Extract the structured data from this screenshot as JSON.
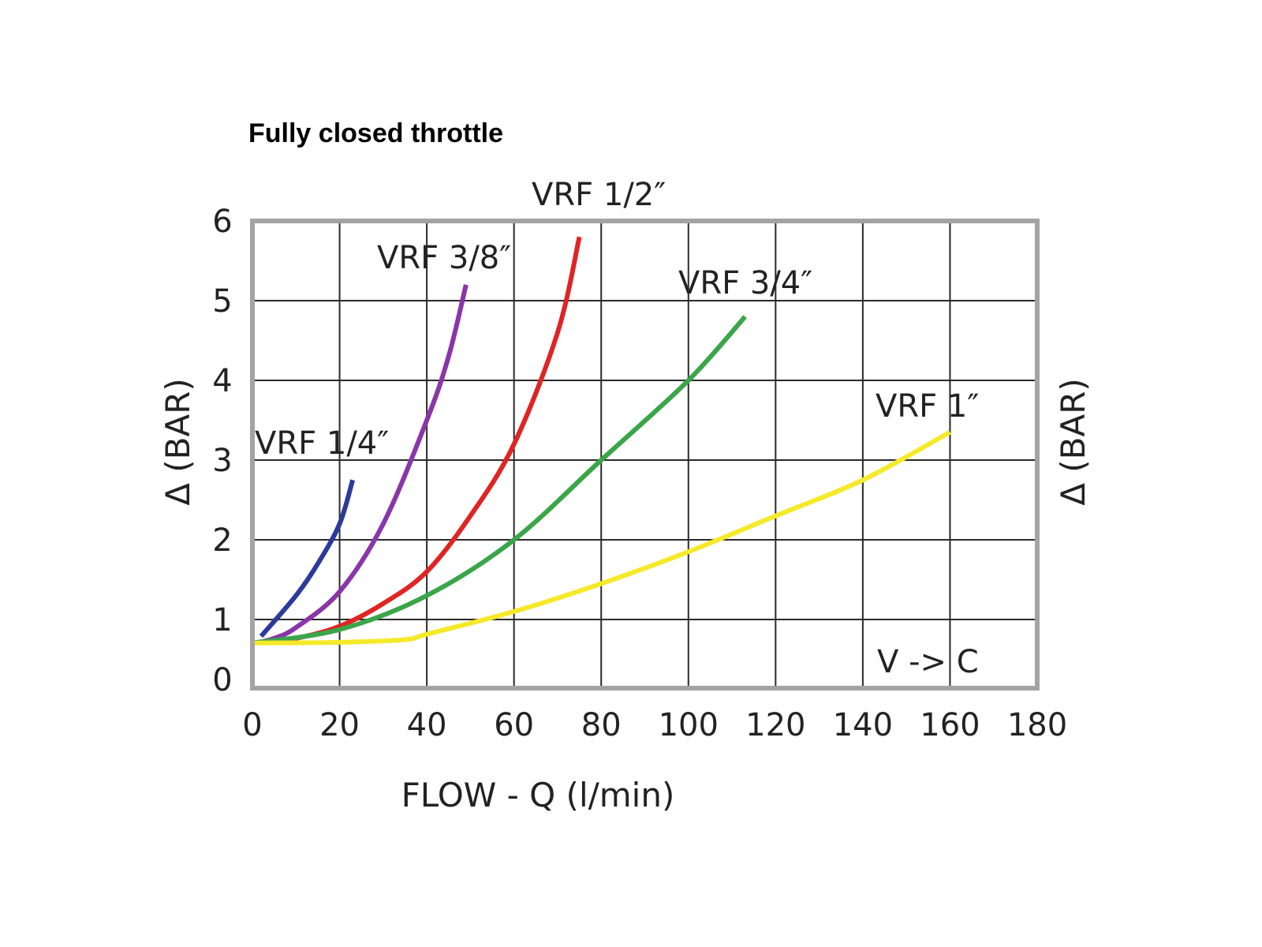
{
  "chart_data": {
    "type": "line",
    "title": "Fully closed throttle",
    "xlabel": "FLOW - Q (l/min)",
    "ylabel": "Δ (BAR)",
    "ylabel_right": "Δ (BAR)",
    "xlim": [
      0,
      180
    ],
    "ylim": [
      0,
      6
    ],
    "grid": true,
    "x_ticks": [
      "0",
      "20",
      "40",
      "60",
      "80",
      "100",
      "120",
      "140",
      "160",
      "180"
    ],
    "y_ticks": [
      "0",
      "1",
      "2",
      "3",
      "4",
      "5",
      "6"
    ],
    "annotation": "V -> C",
    "series": [
      {
        "name": "VRF 1/4″",
        "color": "#2b3a9a",
        "x": [
          2,
          10,
          15,
          20,
          23
        ],
        "y": [
          0.75,
          1.3,
          1.7,
          2.2,
          2.75
        ]
      },
      {
        "name": "VRF 3/8″",
        "color": "#8a35a8",
        "x": [
          1,
          5,
          10,
          20,
          30,
          40,
          45,
          49
        ],
        "y": [
          0.65,
          0.72,
          0.88,
          1.35,
          2.2,
          3.5,
          4.3,
          5.2
        ]
      },
      {
        "name": "VRF 1/2″",
        "color": "#e02424",
        "x": [
          0,
          10,
          20,
          30,
          40,
          50,
          60,
          70,
          75
        ],
        "y": [
          0.65,
          0.72,
          0.9,
          1.2,
          1.6,
          2.3,
          3.2,
          4.6,
          5.8
        ]
      },
      {
        "name": "VRF 3/4″",
        "color": "#3aa549",
        "x": [
          0,
          20,
          40,
          60,
          80,
          100,
          113
        ],
        "y": [
          0.65,
          0.85,
          1.3,
          2.0,
          3.0,
          4.0,
          4.8
        ]
      },
      {
        "name": "VRF 1″",
        "color": "#f5e92a",
        "x": [
          0,
          20,
          35,
          40,
          60,
          80,
          100,
          120,
          140,
          160
        ],
        "y": [
          0.65,
          0.66,
          0.7,
          0.78,
          1.1,
          1.45,
          1.85,
          2.3,
          2.75,
          3.35
        ]
      }
    ]
  }
}
